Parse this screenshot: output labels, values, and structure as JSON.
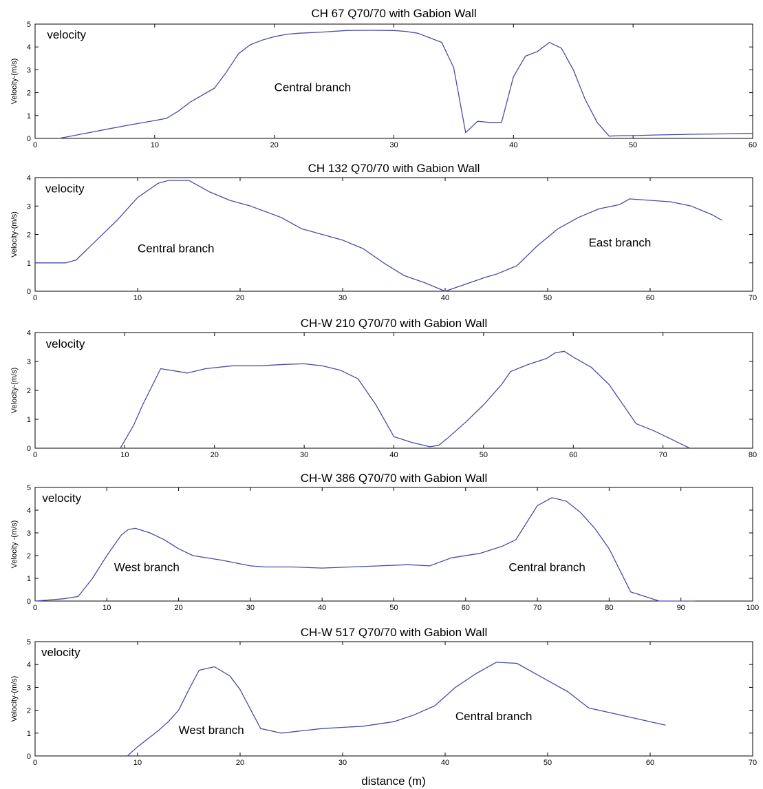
{
  "figure": {
    "xlabel": "distance (m)"
  },
  "chart_data": [
    {
      "type": "line",
      "title": "CH 67 Q70/70 with Gabion Wall",
      "ylabel": "Velocity-(m/s)",
      "xlim": [
        0,
        60
      ],
      "ylim": [
        0,
        5
      ],
      "xticks": [
        0,
        10,
        20,
        30,
        40,
        50,
        60
      ],
      "yticks": [
        0,
        1,
        2,
        3,
        4,
        5
      ],
      "grid": false,
      "line_color": "#4a4aa8",
      "annotations": [
        {
          "text": "velocity",
          "x": 1,
          "y": 4.55
        },
        {
          "text": "Central branch",
          "x": 20,
          "y": 2.25
        }
      ],
      "series": [
        {
          "x": [
            2,
            4,
            6,
            8,
            10,
            11,
            12,
            13,
            15,
            16,
            17,
            18,
            19,
            20,
            21,
            22,
            24,
            26,
            28,
            30,
            31,
            32,
            33,
            34,
            35,
            36,
            37,
            38,
            39,
            40,
            41,
            42,
            43,
            44,
            45,
            46,
            47,
            48,
            49,
            50,
            52,
            55,
            58,
            60
          ],
          "y": [
            0,
            0.2,
            0.4,
            0.6,
            0.78,
            0.88,
            1.2,
            1.6,
            2.2,
            2.9,
            3.7,
            4.1,
            4.3,
            4.45,
            4.55,
            4.6,
            4.65,
            4.72,
            4.73,
            4.72,
            4.68,
            4.6,
            4.4,
            4.2,
            3.1,
            0.25,
            0.75,
            0.7,
            0.7,
            2.7,
            3.6,
            3.8,
            4.2,
            3.95,
            3.0,
            1.7,
            0.7,
            0.1,
            0.12,
            0.12,
            0.15,
            0.18,
            0.2,
            0.22
          ]
        }
      ]
    },
    {
      "type": "line",
      "title": "CH 132 Q70/70 with Gabion Wall",
      "ylabel": "Velocity-(m/s)",
      "xlim": [
        0,
        70
      ],
      "ylim": [
        0,
        4
      ],
      "xticks": [
        0,
        10,
        20,
        30,
        40,
        50,
        60,
        70
      ],
      "yticks": [
        0,
        1,
        2,
        3,
        4
      ],
      "grid": false,
      "line_color": "#4a4aa8",
      "annotations": [
        {
          "text": "velocity",
          "x": 1,
          "y": 3.62
        },
        {
          "text": "Central branch",
          "x": 10,
          "y": 1.52
        },
        {
          "text": "East branch",
          "x": 54,
          "y": 1.72
        }
      ],
      "series": [
        {
          "x": [
            0,
            1,
            3,
            4,
            6,
            8,
            10,
            12,
            13,
            15,
            17,
            19,
            21,
            24,
            26,
            30,
            32,
            34,
            36,
            38,
            40,
            42,
            44,
            45,
            47,
            49,
            51,
            53,
            55,
            57,
            58,
            60,
            62,
            64,
            66,
            67
          ],
          "y": [
            1.0,
            1.0,
            1.0,
            1.1,
            1.8,
            2.5,
            3.3,
            3.8,
            3.9,
            3.9,
            3.5,
            3.2,
            3.0,
            2.6,
            2.2,
            1.8,
            1.5,
            1.0,
            0.55,
            0.3,
            0.0,
            0.25,
            0.5,
            0.6,
            0.9,
            1.6,
            2.2,
            2.6,
            2.9,
            3.05,
            3.25,
            3.2,
            3.15,
            3.0,
            2.7,
            2.5
          ]
        }
      ]
    },
    {
      "type": "line",
      "title": "CH-W 210 Q70/70 with Gabion Wall",
      "ylabel": "Velocity-(m/s)",
      "xlim": [
        0,
        80
      ],
      "ylim": [
        0,
        4
      ],
      "xticks": [
        0,
        10,
        20,
        30,
        40,
        50,
        60,
        70,
        80
      ],
      "yticks": [
        0,
        1,
        2,
        3,
        4
      ],
      "grid": false,
      "line_color": "#4a4aa8",
      "annotations": [
        {
          "text": "velocity",
          "x": 1.2,
          "y": 3.62
        }
      ],
      "series": [
        {
          "x": [
            9.5,
            11,
            12,
            14,
            16,
            17,
            19,
            22,
            25,
            28,
            30,
            32,
            34,
            36,
            38,
            40,
            42,
            44,
            45,
            46,
            48,
            50,
            52,
            53,
            55,
            57,
            58,
            59,
            60,
            62,
            64,
            66,
            67,
            69,
            71,
            73
          ],
          "y": [
            0,
            0.8,
            1.5,
            2.75,
            2.65,
            2.6,
            2.75,
            2.85,
            2.85,
            2.9,
            2.92,
            2.85,
            2.7,
            2.4,
            1.5,
            0.4,
            0.2,
            0.05,
            0.1,
            0.35,
            0.9,
            1.5,
            2.2,
            2.65,
            2.9,
            3.1,
            3.3,
            3.35,
            3.15,
            2.8,
            2.2,
            1.3,
            0.85,
            0.6,
            0.3,
            0.0
          ]
        }
      ]
    },
    {
      "type": "line",
      "title": "CH-W 386 Q70/70 with Gabion Wall",
      "ylabel": "Velocity -(m/s)",
      "xlim": [
        0,
        100
      ],
      "ylim": [
        0,
        5
      ],
      "xticks": [
        0,
        10,
        20,
        30,
        40,
        50,
        60,
        70,
        80,
        90,
        100
      ],
      "yticks": [
        0,
        1,
        2,
        3,
        4,
        5
      ],
      "grid": false,
      "line_color": "#4a4aa8",
      "annotations": [
        {
          "text": "velocity",
          "x": 1,
          "y": 4.55
        },
        {
          "text": "West branch",
          "x": 11,
          "y": 1.5
        },
        {
          "text": "Central branch",
          "x": 66,
          "y": 1.5
        }
      ],
      "series": [
        {
          "x": [
            0,
            2,
            4,
            6,
            8,
            10,
            12,
            13,
            14,
            16,
            18,
            20,
            22,
            26,
            30,
            32,
            36,
            40,
            44,
            48,
            52,
            55,
            58,
            62,
            65,
            67,
            68,
            70,
            72,
            74,
            76,
            78,
            80,
            83,
            87,
            92
          ],
          "y": [
            0,
            0.05,
            0.1,
            0.2,
            1.0,
            2.0,
            2.9,
            3.15,
            3.2,
            3.0,
            2.7,
            2.3,
            2.0,
            1.8,
            1.55,
            1.5,
            1.5,
            1.45,
            1.5,
            1.55,
            1.6,
            1.55,
            1.9,
            2.1,
            2.4,
            2.7,
            3.2,
            4.2,
            4.55,
            4.4,
            3.9,
            3.2,
            2.3,
            0.4,
            0.0,
            0.0
          ]
        }
      ]
    },
    {
      "type": "line",
      "title": "CH-W 517 Q70/70 with Gabion Wall",
      "ylabel": "Velocity-(m/s)",
      "xlim": [
        0,
        70
      ],
      "ylim": [
        0,
        5
      ],
      "xticks": [
        0,
        10,
        20,
        30,
        40,
        50,
        60,
        70
      ],
      "yticks": [
        0,
        1,
        2,
        3,
        4,
        5
      ],
      "grid": false,
      "line_color": "#4a4aa8",
      "annotations": [
        {
          "text": "velocity",
          "x": 0.6,
          "y": 4.55
        },
        {
          "text": "West branch",
          "x": 14,
          "y": 1.15
        },
        {
          "text": "Central branch",
          "x": 41,
          "y": 1.75
        }
      ],
      "series": [
        {
          "x": [
            9,
            10,
            12,
            13,
            14,
            15,
            16,
            17.5,
            19,
            20,
            22,
            24,
            26,
            28,
            30,
            32,
            35,
            37,
            39,
            41,
            43,
            45,
            47,
            50,
            52,
            54,
            57,
            60,
            61.5
          ],
          "y": [
            0,
            0.4,
            1.1,
            1.5,
            2.0,
            2.9,
            3.75,
            3.9,
            3.5,
            2.9,
            1.2,
            1.0,
            1.1,
            1.2,
            1.25,
            1.3,
            1.5,
            1.8,
            2.2,
            3.0,
            3.6,
            4.1,
            4.05,
            3.3,
            2.8,
            2.1,
            1.8,
            1.5,
            1.35
          ]
        }
      ]
    }
  ]
}
